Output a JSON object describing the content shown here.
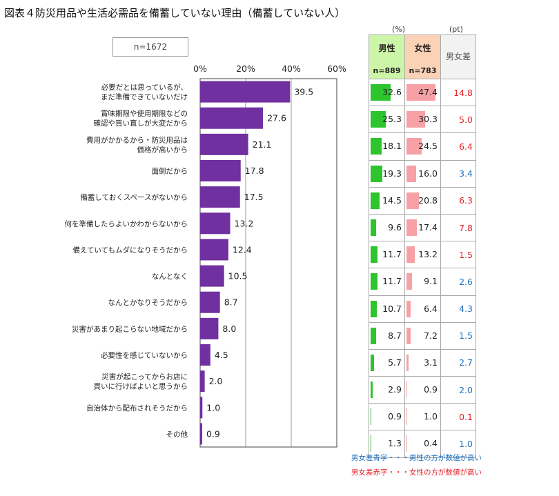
{
  "title": "図表４防災用品や生活必需品を備蓄していない理由（備蓄していない人）",
  "sample_label": "n=1672",
  "units": {
    "pct": "(%)",
    "pt": "(pt)"
  },
  "table": {
    "male_header": "男性",
    "male_n": "n=889",
    "female_header": "女性",
    "female_n": "n=783",
    "diff_header": "男女差"
  },
  "legend": {
    "blue": "男女差青字・・・男性の方が数値が高い",
    "red": "男女差赤字・・・女性の方が数値が高い"
  },
  "colors": {
    "bar": "#7030a0",
    "male": "#2ec42e",
    "female": "#f7a1a6",
    "red": "#e8202a",
    "blue": "#1f6fbf"
  },
  "chart_data": {
    "type": "bar",
    "orientation": "horizontal",
    "xlim": [
      0,
      60
    ],
    "ticks": [
      "0%",
      "20%",
      "40%",
      "60%"
    ],
    "categories": [
      [
        "必要だとは思っているが、",
        "まだ準備できていないだけ"
      ],
      [
        "賞味期限や使用期限などの",
        "確認や買い直しが大変だから"
      ],
      [
        "費用がかかるから・防災用品は",
        "価格が高いから"
      ],
      [
        "面倒だから"
      ],
      [
        "備蓄しておくスペースがないから"
      ],
      [
        "何を準備したらよいかわからないから"
      ],
      [
        "備えていてもムダになりそうだから"
      ],
      [
        "なんとなく"
      ],
      [
        "なんとかなりそうだから"
      ],
      [
        "災害があまり起こらない地域だから"
      ],
      [
        "必要性を感じていないから"
      ],
      [
        "災害が起こってからお店に",
        "買いに行けばよいと思うから"
      ],
      [
        "自治体から配布されそうだから"
      ],
      [
        "その他"
      ]
    ],
    "values": [
      39.5,
      27.6,
      21.1,
      17.8,
      17.5,
      13.2,
      12.4,
      10.5,
      8.7,
      8.0,
      4.5,
      2.0,
      1.0,
      0.9
    ],
    "male": [
      32.6,
      25.3,
      18.1,
      19.3,
      14.5,
      9.6,
      11.7,
      11.7,
      10.7,
      8.7,
      5.7,
      2.9,
      0.9,
      1.3
    ],
    "female": [
      47.4,
      30.3,
      24.5,
      16.0,
      20.8,
      17.4,
      13.2,
      9.1,
      6.4,
      7.2,
      3.1,
      0.9,
      1.0,
      0.4
    ],
    "diff": [
      "14.8",
      "5.0",
      "6.4",
      "3.4",
      "6.3",
      "7.8",
      "1.5",
      "2.6",
      "4.3",
      "1.5",
      "2.7",
      "2.0",
      "0.1",
      "1.0"
    ],
    "diff_color": [
      "red",
      "red",
      "red",
      "blue",
      "red",
      "red",
      "red",
      "blue",
      "blue",
      "blue",
      "blue",
      "blue",
      "red",
      "blue"
    ],
    "grid": true
  }
}
